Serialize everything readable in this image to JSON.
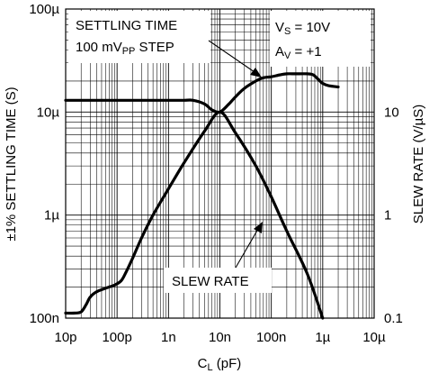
{
  "chart_data": {
    "type": "line",
    "x_scale": "log",
    "y_left_scale": "log",
    "y_right_scale": "log",
    "xlim": [
      "10p",
      "10µ"
    ],
    "xlim_values": [
      1e-11,
      1e-05
    ],
    "ylim_left": [
      "100n",
      "100µ"
    ],
    "ylim_left_values": [
      1e-07,
      0.0001
    ],
    "ylim_right": [
      0.1,
      100
    ],
    "grid": true,
    "xlabel": {
      "main": "C",
      "sub": "L",
      "rest": " (pF)"
    },
    "ylabel_left": "±1% SETTLING TIME (S)",
    "ylabel_right": "SLEW RATE (V/µS)",
    "x_ticks": [
      {
        "label": "10p",
        "value": 1e-11
      },
      {
        "label": "100p",
        "value": 1e-10
      },
      {
        "label": "1n",
        "value": 1e-09
      },
      {
        "label": "10n",
        "value": 1e-08
      },
      {
        "label": "100n",
        "value": 1e-07
      },
      {
        "label": "1µ",
        "value": 1e-06
      },
      {
        "label": "10µ",
        "value": 1e-05
      }
    ],
    "y_left_ticks": [
      {
        "label": "100n",
        "value": 1e-07
      },
      {
        "label": "1µ",
        "value": 1e-06
      },
      {
        "label": "10µ",
        "value": 1e-05
      },
      {
        "label": "100µ",
        "value": 0.0001
      }
    ],
    "y_right_ticks": [
      {
        "label": "0.1",
        "value": 0.1
      },
      {
        "label": "1",
        "value": 1
      },
      {
        "label": "10",
        "value": 10
      }
    ],
    "annotations": {
      "settling_line1": "SETTLING TIME",
      "settling_line2_pre": "100 mV",
      "settling_line2_sub": "PP",
      "settling_line2_post": " STEP",
      "vs_pre": "V",
      "vs_sub": "S",
      "vs_post": " = 10V",
      "av_pre": "A",
      "av_sub": "V",
      "av_post": " = +1",
      "slew_label": "SLEW RATE"
    },
    "series": [
      {
        "axis": "left",
        "x": [
          1e-11,
          2e-11,
          5e-11,
          1e-10,
          2e-10,
          5e-10,
          1e-09,
          2e-09,
          3e-09,
          5e-09,
          7e-09,
          1e-08,
          1.5e-08,
          2e-08,
          3e-08,
          5e-08,
          7e-08,
          1e-07,
          1.5e-07,
          2e-07,
          3e-07,
          5e-07,
          6.5e-07,
          8e-07,
          1e-06,
          1.3e-06,
          2e-06
        ],
        "y": [
          1.3e-05,
          1.3e-05,
          1.3e-05,
          1.3e-05,
          1.3e-05,
          1.3e-05,
          1.3e-05,
          1.3e-05,
          1.3e-05,
          1.2e-05,
          1.05e-05,
          1e-05,
          1.2e-05,
          1.4e-05,
          1.7e-05,
          2e-05,
          2.15e-05,
          2.2e-05,
          2.3e-05,
          2.35e-05,
          2.35e-05,
          2.35e-05,
          2.3e-05,
          2.1e-05,
          1.9e-05,
          1.8e-05,
          1.75e-05
        ]
      },
      {
        "axis": "left",
        "x": [
          1e-11,
          1.5e-11,
          2e-11,
          2.5e-11,
          3e-11,
          4e-11,
          6e-11,
          9e-11,
          1.2e-10,
          1.5e-10,
          2e-10,
          3e-10,
          5e-10,
          1e-09,
          2e-09,
          5e-09,
          1e-08,
          2e-08,
          5e-08,
          1e-07,
          2e-07,
          5e-07,
          1e-06
        ],
        "y": [
          1.12e-07,
          1.12e-07,
          1.15e-07,
          1.35e-07,
          1.6e-07,
          1.8e-07,
          1.95e-07,
          2.1e-07,
          2.3e-07,
          2.8e-07,
          3.8e-07,
          6e-07,
          1e-06,
          1.8e-06,
          3.2e-06,
          6.5e-06,
          1e-05,
          6.3e-06,
          3e-06,
          1.5e-06,
          7e-07,
          2.7e-07,
          1e-07
        ]
      }
    ]
  }
}
